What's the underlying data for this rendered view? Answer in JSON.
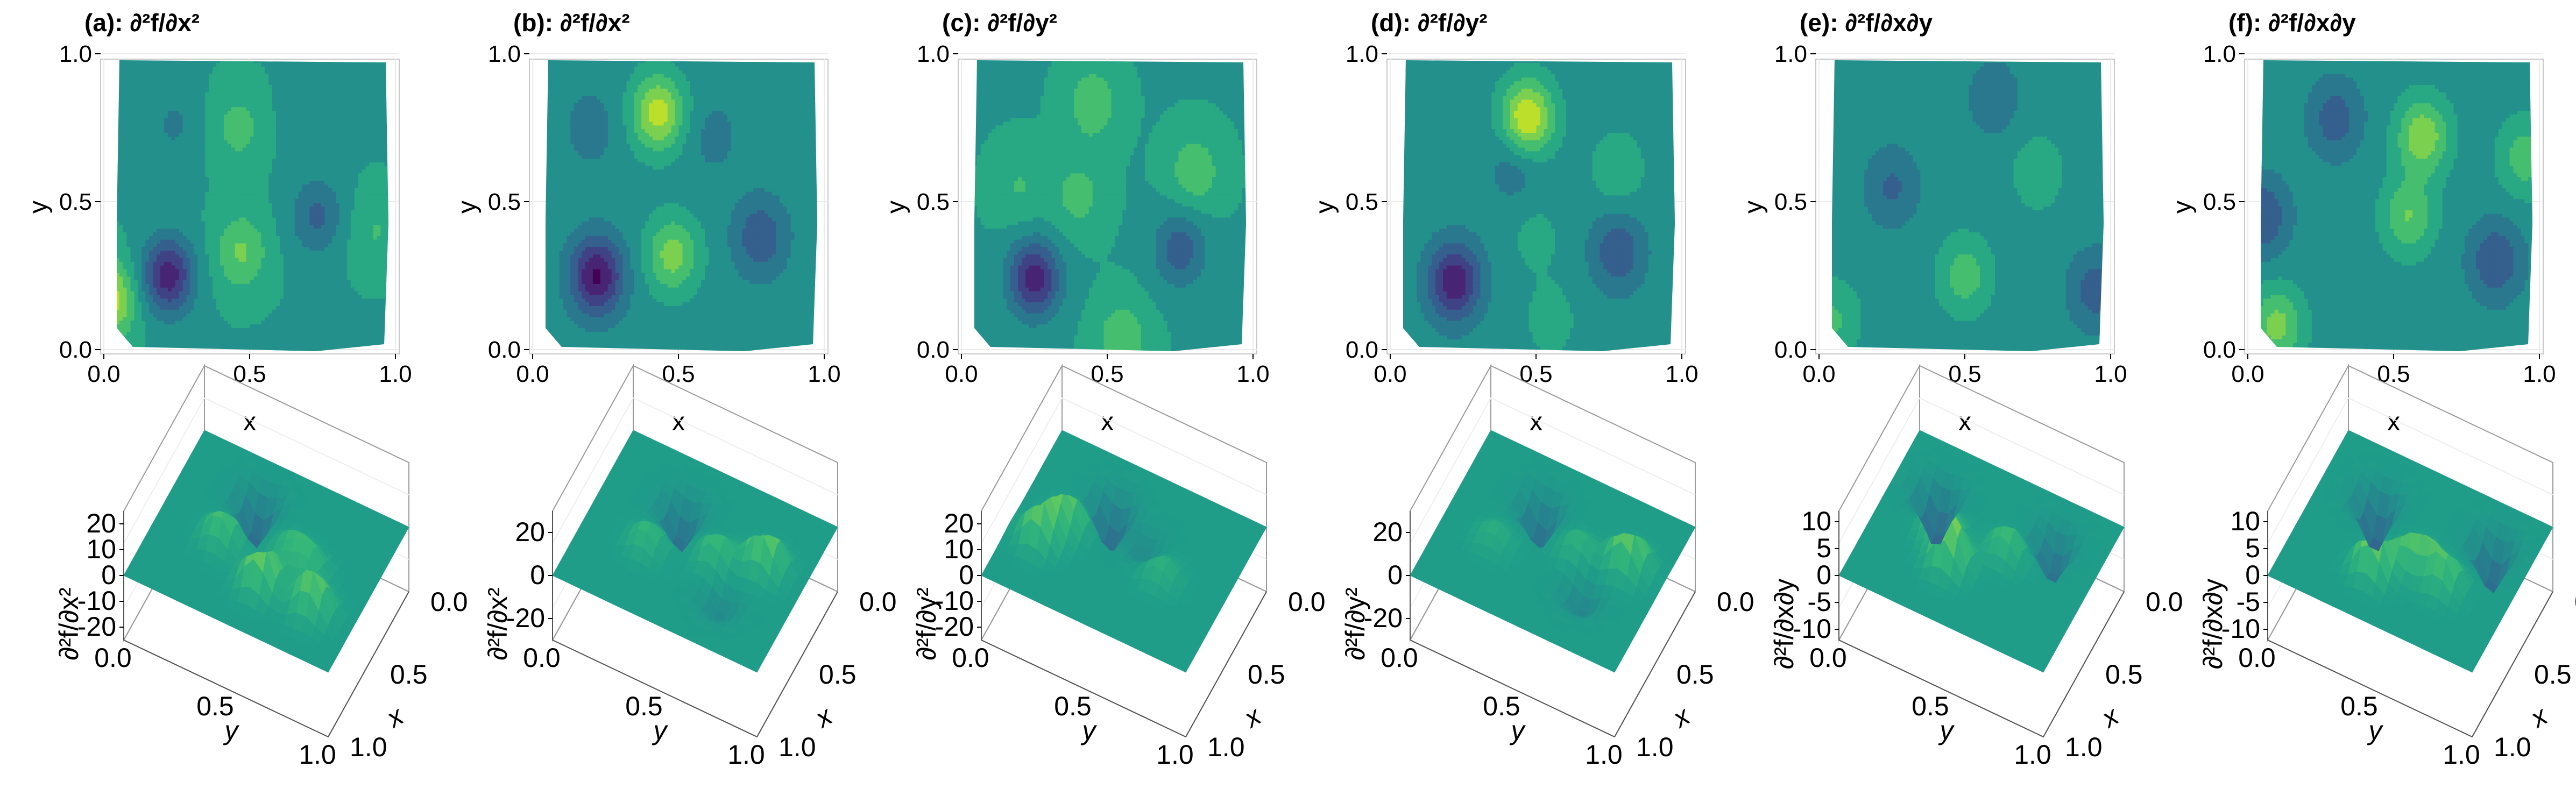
{
  "chart_data": [
    {
      "type": "contour",
      "title": "(a): ∂²f/∂x²",
      "xlabel": "x",
      "ylabel": "y",
      "x_ticks": [
        "0.0",
        "0.5",
        "1.0"
      ],
      "y_ticks": [
        "0.0",
        "0.5",
        "1.0"
      ],
      "xlim": [
        0,
        1
      ],
      "ylim": [
        0,
        1
      ],
      "colormap": "viridis",
      "clim": [
        -30,
        25
      ],
      "features": [
        {
          "x": 0.22,
          "y": 0.25,
          "value": -25
        },
        {
          "x": 0.47,
          "y": 0.33,
          "value": 12
        },
        {
          "x": 0.46,
          "y": 0.75,
          "value": 8
        },
        {
          "x": 0.73,
          "y": 0.45,
          "value": -12
        },
        {
          "x": 0.02,
          "y": 0.17,
          "value": 20
        },
        {
          "x": 0.24,
          "y": 0.76,
          "value": -6
        },
        {
          "x": 0.7,
          "y": 0.78,
          "value": -4
        },
        {
          "x": 0.93,
          "y": 0.4,
          "value": 6
        }
      ]
    },
    {
      "type": "contour",
      "title": "(b): ∂²f/∂x²",
      "xlabel": "x",
      "ylabel": "y",
      "x_ticks": [
        "0.0",
        "0.5",
        "1.0"
      ],
      "y_ticks": [
        "0.0",
        "0.5",
        "1.0"
      ],
      "xlim": [
        0,
        1
      ],
      "ylim": [
        0,
        1
      ],
      "colormap": "viridis",
      "clim": [
        -30,
        30
      ],
      "features": [
        {
          "x": 0.22,
          "y": 0.25,
          "value": -28
        },
        {
          "x": 0.48,
          "y": 0.32,
          "value": 18
        },
        {
          "x": 0.43,
          "y": 0.8,
          "value": 24
        },
        {
          "x": 0.78,
          "y": 0.38,
          "value": -14
        },
        {
          "x": 0.2,
          "y": 0.75,
          "value": -6
        },
        {
          "x": 0.62,
          "y": 0.72,
          "value": -5
        }
      ]
    },
    {
      "type": "contour",
      "title": "(c): ∂²f/∂y²",
      "xlabel": "x",
      "ylabel": "y",
      "x_ticks": [
        "0.0",
        "0.5",
        "1.0"
      ],
      "y_ticks": [
        "0.0",
        "0.5",
        "1.0"
      ],
      "xlim": [
        0,
        1
      ],
      "ylim": [
        0,
        1
      ],
      "colormap": "viridis",
      "clim": [
        -30,
        25
      ],
      "features": [
        {
          "x": 0.25,
          "y": 0.24,
          "value": -25
        },
        {
          "x": 0.75,
          "y": 0.34,
          "value": -14
        },
        {
          "x": 0.4,
          "y": 0.52,
          "value": 8
        },
        {
          "x": 0.8,
          "y": 0.6,
          "value": 10
        },
        {
          "x": 0.45,
          "y": 0.83,
          "value": 10
        },
        {
          "x": 0.2,
          "y": 0.55,
          "value": 6
        },
        {
          "x": 0.55,
          "y": 0.04,
          "value": 10
        }
      ]
    },
    {
      "type": "contour",
      "title": "(d): ∂²f/∂y²",
      "xlabel": "x",
      "ylabel": "y",
      "x_ticks": [
        "0.0",
        "0.5",
        "1.0"
      ],
      "y_ticks": [
        "0.0",
        "0.5",
        "1.0"
      ],
      "xlim": [
        0,
        1
      ],
      "ylim": [
        0,
        1
      ],
      "colormap": "viridis",
      "clim": [
        -30,
        30
      ],
      "features": [
        {
          "x": 0.22,
          "y": 0.23,
          "value": -26
        },
        {
          "x": 0.47,
          "y": 0.78,
          "value": 28
        },
        {
          "x": 0.78,
          "y": 0.33,
          "value": -14
        },
        {
          "x": 0.43,
          "y": 0.63,
          "value": -8
        },
        {
          "x": 0.78,
          "y": 0.61,
          "value": 8
        },
        {
          "x": 0.5,
          "y": 0.38,
          "value": 5
        },
        {
          "x": 0.55,
          "y": 0.1,
          "value": 6
        }
      ]
    },
    {
      "type": "contour",
      "title": "(e): ∂²f/∂x∂y",
      "xlabel": "x",
      "ylabel": "y",
      "x_ticks": [
        "0.0",
        "0.5",
        "1.0"
      ],
      "y_ticks": [
        "0.0",
        "0.5",
        "1.0"
      ],
      "xlim": [
        0,
        1
      ],
      "ylim": [
        0,
        1
      ],
      "colormap": "viridis",
      "clim": [
        -12,
        12
      ],
      "features": [
        {
          "x": 0.5,
          "y": 0.25,
          "value": 5
        },
        {
          "x": 0.25,
          "y": 0.55,
          "value": -4
        },
        {
          "x": 0.75,
          "y": 0.6,
          "value": 3
        },
        {
          "x": 0.95,
          "y": 0.2,
          "value": -5
        },
        {
          "x": 0.05,
          "y": 0.1,
          "value": 4
        },
        {
          "x": 0.6,
          "y": 0.85,
          "value": -3
        }
      ]
    },
    {
      "type": "contour",
      "title": "(f): ∂²f/∂x∂y",
      "xlabel": "x",
      "ylabel": "y",
      "x_ticks": [
        "0.0",
        "0.5",
        "1.0"
      ],
      "y_ticks": [
        "0.0",
        "0.5",
        "1.0"
      ],
      "xlim": [
        0,
        1
      ],
      "ylim": [
        0,
        1
      ],
      "colormap": "viridis",
      "clim": [
        -12,
        12
      ],
      "features": [
        {
          "x": 0.05,
          "y": 0.45,
          "value": -6
        },
        {
          "x": 0.55,
          "y": 0.45,
          "value": 6
        },
        {
          "x": 0.6,
          "y": 0.72,
          "value": 8
        },
        {
          "x": 0.3,
          "y": 0.78,
          "value": -5
        },
        {
          "x": 0.85,
          "y": 0.3,
          "value": -6
        },
        {
          "x": 0.95,
          "y": 0.65,
          "value": 5
        },
        {
          "x": 0.1,
          "y": 0.08,
          "value": 7
        }
      ]
    },
    {
      "type": "surface",
      "x_label": "x",
      "y_label": "y",
      "z_label": "∂²f/∂x²",
      "x_ticks": [
        "0.0",
        "0.5",
        "1.0"
      ],
      "y_ticks": [
        "0.0",
        "0.5",
        "1.0"
      ],
      "z_ticks": [
        "-20",
        "-10",
        "0",
        "10",
        "20"
      ],
      "zlim": [
        -25,
        25
      ],
      "colormap": "viridis"
    },
    {
      "type": "surface",
      "x_label": "x",
      "y_label": "y",
      "z_label": "∂²f/∂x²",
      "x_ticks": [
        "0.0",
        "0.5",
        "1.0"
      ],
      "y_ticks": [
        "0.0",
        "0.5",
        "1.0"
      ],
      "z_ticks": [
        "-20",
        "0",
        "20"
      ],
      "zlim": [
        -30,
        30
      ],
      "colormap": "viridis"
    },
    {
      "type": "surface",
      "x_label": "x",
      "y_label": "y",
      "z_label": "∂²f/∂y²",
      "x_ticks": [
        "0.0",
        "0.5",
        "1.0"
      ],
      "y_ticks": [
        "0.0",
        "0.5",
        "1.0"
      ],
      "z_ticks": [
        "-20",
        "-10",
        "0",
        "10",
        "20"
      ],
      "zlim": [
        -25,
        25
      ],
      "colormap": "viridis"
    },
    {
      "type": "surface",
      "x_label": "x",
      "y_label": "y",
      "z_label": "∂²f/∂y²",
      "x_ticks": [
        "0.0",
        "0.5",
        "1.0"
      ],
      "y_ticks": [
        "0.0",
        "0.5",
        "1.0"
      ],
      "z_ticks": [
        "-20",
        "0",
        "20"
      ],
      "zlim": [
        -30,
        30
      ],
      "colormap": "viridis"
    },
    {
      "type": "surface",
      "x_label": "x",
      "y_label": "y",
      "z_label": "∂²f/∂x∂y",
      "x_ticks": [
        "0.0",
        "0.5",
        "1.0"
      ],
      "y_ticks": [
        "0.0",
        "0.5",
        "1.0"
      ],
      "z_ticks": [
        "-10",
        "-5",
        "0",
        "5",
        "10"
      ],
      "zlim": [
        -12,
        12
      ],
      "colormap": "viridis"
    },
    {
      "type": "surface",
      "x_label": "x",
      "y_label": "y",
      "z_label": "∂²f/∂x∂y",
      "x_ticks": [
        "0.0",
        "0.5",
        "1.0"
      ],
      "y_ticks": [
        "0.0",
        "0.5",
        "1.0"
      ],
      "z_ticks": [
        "-10",
        "-5",
        "0",
        "5",
        "10"
      ],
      "zlim": [
        -12,
        12
      ],
      "colormap": "viridis"
    }
  ]
}
